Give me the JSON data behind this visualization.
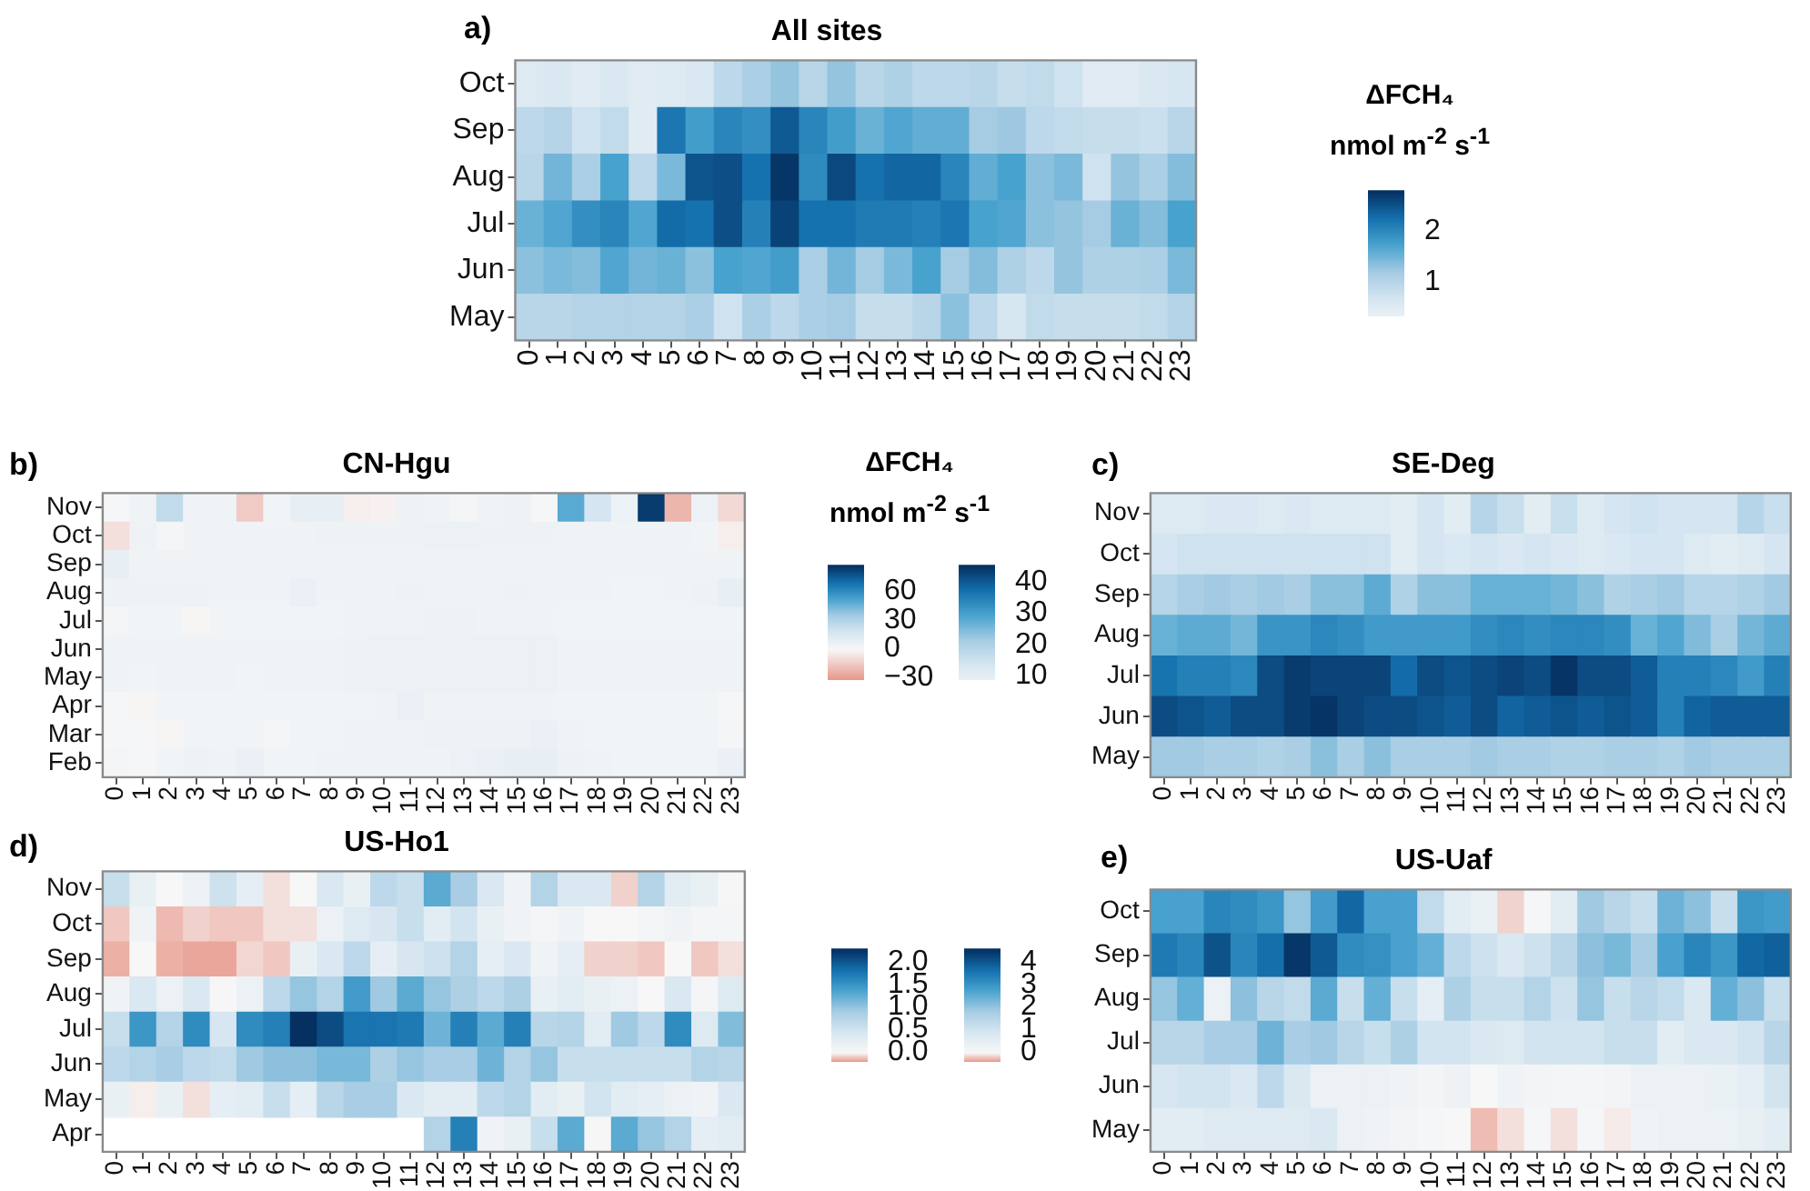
{
  "chart_data": [
    {
      "type": "heatmap",
      "title": "All sites",
      "annotations": [
        "a)"
      ],
      "clabel": "ΔFCH₄ nmol m$^{-2}$ s$^{-1}$",
      "categories": [
        "0",
        "1",
        "2",
        "3",
        "4",
        "5",
        "6",
        "7",
        "8",
        "9",
        "10",
        "11",
        "12",
        "13",
        "14",
        "15",
        "16",
        "17",
        "18",
        "19",
        "20",
        "21",
        "22",
        "23"
      ],
      "y_categories": [
        "Oct",
        "Sep",
        "Aug",
        "Jul",
        "Jun",
        "May"
      ],
      "cells": [
        [
          0.55,
          0.6,
          0.5,
          0.6,
          0.5,
          0.55,
          0.6,
          0.95,
          1.15,
          1.3,
          1.0,
          1.3,
          1.0,
          1.1,
          0.95,
          0.95,
          1.0,
          0.85,
          0.9,
          0.75,
          0.5,
          0.5,
          0.6,
          0.65
        ],
        [
          0.95,
          1.05,
          0.75,
          0.9,
          0.5,
          2.2,
          1.8,
          2.05,
          1.95,
          2.45,
          2.05,
          1.8,
          1.55,
          1.7,
          1.6,
          1.6,
          1.2,
          1.25,
          0.95,
          0.9,
          0.85,
          0.85,
          0.8,
          1.0
        ],
        [
          1.0,
          1.5,
          1.15,
          1.75,
          0.95,
          1.45,
          2.5,
          2.55,
          2.25,
          2.75,
          2.0,
          2.6,
          2.25,
          2.35,
          2.35,
          2.05,
          1.6,
          1.75,
          1.35,
          1.45,
          0.75,
          1.3,
          1.15,
          1.4
        ],
        [
          1.55,
          1.7,
          1.95,
          2.05,
          1.7,
          2.3,
          2.25,
          2.55,
          2.1,
          2.65,
          2.25,
          2.25,
          2.15,
          2.15,
          2.1,
          2.2,
          1.75,
          1.7,
          1.35,
          1.3,
          1.2,
          1.55,
          1.4,
          1.75
        ],
        [
          1.35,
          1.45,
          1.4,
          1.7,
          1.5,
          1.55,
          1.35,
          1.75,
          1.7,
          1.8,
          1.15,
          1.5,
          1.2,
          1.45,
          1.75,
          1.2,
          1.4,
          1.1,
          0.95,
          1.3,
          1.1,
          1.1,
          1.15,
          1.45
        ],
        [
          1.0,
          1.0,
          1.05,
          1.05,
          1.05,
          1.05,
          1.15,
          0.75,
          1.15,
          0.95,
          1.15,
          1.2,
          0.85,
          0.85,
          1.0,
          1.35,
          0.95,
          0.65,
          0.9,
          0.85,
          0.85,
          0.85,
          0.9,
          1.05
        ]
      ],
      "clim": [
        0.35,
        2.8
      ],
      "cticks": [
        1,
        2
      ]
    },
    {
      "type": "heatmap",
      "title": "CN-Hgu",
      "annotations": [
        "b)"
      ],
      "clabel": "ΔFCH₄ nmol m$^{-2}$ s$^{-1}$",
      "categories": [
        "0",
        "1",
        "2",
        "3",
        "4",
        "5",
        "6",
        "7",
        "8",
        "9",
        "10",
        "11",
        "12",
        "13",
        "14",
        "15",
        "16",
        "17",
        "18",
        "19",
        "20",
        "21",
        "22",
        "23"
      ],
      "y_categories": [
        "Nov",
        "Oct",
        "Sep",
        "Aug",
        "Jul",
        "Jun",
        "May",
        "Apr",
        "Mar",
        "Feb"
      ],
      "cells": [
        [
          1,
          4,
          25,
          4,
          4,
          -15,
          3,
          8,
          8,
          -3,
          -2,
          6,
          4,
          2,
          4,
          5,
          1,
          50,
          18,
          6,
          85,
          -22,
          6,
          -10
        ],
        [
          -8,
          5,
          2,
          4,
          4,
          4,
          4,
          4,
          5,
          5,
          5,
          5,
          6,
          6,
          5,
          5,
          5,
          4,
          4,
          4,
          4,
          4,
          3,
          -3
        ],
        [
          8,
          4,
          4,
          4,
          4,
          4,
          4,
          4,
          4,
          4,
          4,
          4,
          4,
          4,
          4,
          4,
          4,
          4,
          4,
          4,
          4,
          4,
          4,
          4
        ],
        [
          5,
          5,
          5,
          5,
          4,
          4,
          4,
          7,
          4,
          4,
          4,
          5,
          4,
          4,
          4,
          5,
          4,
          4,
          4,
          3,
          3,
          4,
          5,
          8
        ],
        [
          2,
          3,
          3,
          -1,
          3,
          3,
          3,
          3,
          3,
          4,
          4,
          4,
          5,
          5,
          4,
          4,
          4,
          3,
          3,
          3,
          3,
          3,
          3,
          3
        ],
        [
          4,
          4,
          4,
          4,
          4,
          4,
          4,
          4,
          4,
          5,
          6,
          6,
          6,
          6,
          6,
          6,
          6,
          4,
          4,
          4,
          4,
          4,
          4,
          4
        ],
        [
          4,
          3,
          4,
          4,
          4,
          3,
          4,
          4,
          4,
          5,
          6,
          6,
          6,
          6,
          6,
          6,
          6,
          4,
          4,
          4,
          4,
          4,
          4,
          4
        ],
        [
          1,
          -1,
          3,
          3,
          3,
          3,
          3,
          3,
          3,
          3,
          4,
          7,
          4,
          4,
          4,
          4,
          4,
          3,
          3,
          3,
          3,
          3,
          3,
          1
        ],
        [
          1,
          1,
          -1,
          3,
          3,
          3,
          2,
          3,
          3,
          4,
          4,
          4,
          5,
          5,
          5,
          5,
          7,
          4,
          3,
          3,
          3,
          3,
          3,
          2
        ],
        [
          2,
          1,
          3,
          5,
          4,
          7,
          3,
          3,
          4,
          4,
          4,
          4,
          4,
          6,
          7,
          8,
          8,
          5,
          4,
          3,
          3,
          3,
          3,
          7
        ]
      ],
      "clim": [
        -32,
        88
      ],
      "cticks": [
        {
          "value": -30,
          "label": "−30"
        },
        0,
        30,
        60
      ]
    },
    {
      "type": "heatmap",
      "title": "SE-Deg",
      "annotations": [
        "c)"
      ],
      "categories": [
        "0",
        "1",
        "2",
        "3",
        "4",
        "5",
        "6",
        "7",
        "8",
        "9",
        "10",
        "11",
        "12",
        "13",
        "14",
        "15",
        "16",
        "17",
        "18",
        "19",
        "20",
        "21",
        "22",
        "23"
      ],
      "y_categories": [
        "Nov",
        "Oct",
        "Sep",
        "Aug",
        "Jul",
        "Jun",
        "May"
      ],
      "cells": [
        [
          12,
          12,
          13,
          13,
          12,
          13,
          12,
          12,
          12,
          11,
          14,
          11,
          19,
          16,
          11,
          16,
          12,
          14,
          15,
          14,
          14,
          14,
          19,
          16
        ],
        [
          14,
          15,
          15,
          15,
          15,
          15,
          15,
          15,
          15,
          11,
          14,
          13,
          14,
          13,
          14,
          13,
          12,
          13,
          14,
          14,
          12,
          11,
          12,
          14
        ],
        [
          19,
          21,
          22,
          21,
          22,
          21,
          24,
          24,
          28,
          20,
          24,
          24,
          27,
          27,
          27,
          26,
          24,
          20,
          21,
          22,
          19,
          19,
          20,
          22
        ],
        [
          27,
          28,
          28,
          26,
          32,
          32,
          34,
          33,
          31,
          31,
          31,
          31,
          33,
          34,
          33,
          34,
          34,
          33,
          27,
          29,
          25,
          21,
          26,
          28
        ],
        [
          37,
          35,
          35,
          34,
          42,
          44,
          43,
          43,
          43,
          38,
          42,
          41,
          42,
          43,
          42,
          45,
          42,
          42,
          40,
          35,
          35,
          34,
          31,
          35
        ],
        [
          42,
          41,
          40,
          42,
          42,
          44,
          45,
          43,
          42,
          42,
          41,
          40,
          42,
          39,
          40,
          41,
          40,
          41,
          40,
          35,
          39,
          40,
          40,
          40
        ],
        [
          22,
          22,
          21,
          21,
          20,
          21,
          24,
          21,
          24,
          21,
          21,
          21,
          22,
          21,
          21,
          20,
          20,
          21,
          21,
          20,
          22,
          21,
          21,
          21
        ]
      ],
      "clim": [
        9,
        45.5
      ],
      "cticks": [
        10,
        20,
        30,
        40
      ]
    },
    {
      "type": "heatmap",
      "title": "US-Ho1",
      "annotations": [
        "d)"
      ],
      "categories": [
        "0",
        "1",
        "2",
        "3",
        "4",
        "5",
        "6",
        "7",
        "8",
        "9",
        "10",
        "11",
        "12",
        "13",
        "14",
        "15",
        "16",
        "17",
        "18",
        "19",
        "20",
        "21",
        "22",
        "23"
      ],
      "y_categories": [
        "Nov",
        "Oct",
        "Sep",
        "Aug",
        "Jul",
        "Jun",
        "May",
        "Apr"
      ],
      "cells": [
        [
          0.6,
          0.2,
          0.0,
          0.15,
          0.55,
          0.25,
          -0.05,
          0.0,
          0.4,
          0.2,
          0.7,
          0.6,
          1.3,
          0.9,
          0.4,
          0.1,
          0.8,
          0.4,
          0.4,
          -0.08,
          0.8,
          0.3,
          0.2,
          0.02
        ],
        [
          -0.1,
          0.1,
          -0.13,
          -0.08,
          -0.1,
          -0.1,
          -0.05,
          -0.05,
          0.15,
          0.35,
          0.45,
          0.6,
          0.3,
          0.5,
          0.2,
          0.1,
          0.05,
          0.1,
          0.0,
          0.0,
          0.05,
          0.1,
          0.05,
          0.05
        ],
        [
          -0.15,
          0.0,
          -0.15,
          -0.17,
          -0.17,
          -0.07,
          -0.1,
          0.2,
          0.4,
          0.7,
          0.25,
          0.45,
          0.55,
          0.8,
          0.25,
          0.4,
          0.1,
          0.25,
          -0.08,
          -0.08,
          -0.1,
          0.0,
          -0.1,
          -0.05
        ],
        [
          0.1,
          0.4,
          0.15,
          0.4,
          0.02,
          0.15,
          0.7,
          1.0,
          0.8,
          1.45,
          0.95,
          1.3,
          1.0,
          0.85,
          0.7,
          0.85,
          0.2,
          0.3,
          0.2,
          0.15,
          0.0,
          0.4,
          0.05,
          0.35
        ],
        [
          0.6,
          1.5,
          0.8,
          1.6,
          0.45,
          1.6,
          1.7,
          2.3,
          2.1,
          1.8,
          1.8,
          1.75,
          1.2,
          1.7,
          1.3,
          1.7,
          0.75,
          0.8,
          0.3,
          0.95,
          0.7,
          1.6,
          0.35,
          1.1
        ],
        [
          0.7,
          0.8,
          0.9,
          0.7,
          0.65,
          0.95,
          1.05,
          1.05,
          1.15,
          1.15,
          0.85,
          1.0,
          0.9,
          0.9,
          1.2,
          0.8,
          1.0,
          0.6,
          0.6,
          0.6,
          0.6,
          0.6,
          0.8,
          0.75
        ],
        [
          0.2,
          -0.02,
          0.2,
          -0.05,
          0.25,
          0.3,
          0.6,
          0.25,
          0.75,
          0.9,
          0.9,
          0.4,
          0.3,
          0.3,
          0.7,
          0.8,
          0.3,
          0.2,
          0.5,
          0.3,
          0.25,
          0.15,
          0.1,
          0.4
        ],
        [
          null,
          null,
          null,
          null,
          null,
          null,
          null,
          null,
          null,
          null,
          null,
          null,
          0.8,
          1.7,
          0.1,
          0.2,
          0.6,
          1.3,
          0.02,
          1.3,
          1.0,
          0.8,
          0.25,
          0.3
        ]
      ],
      "clim": [
        -0.2,
        2.3
      ],
      "cticks": [
        {
          "value": 0,
          "label": "0.0"
        },
        0.5,
        {
          "value": 1,
          "label": "1.0"
        },
        1.5,
        {
          "value": 2,
          "label": "2.0"
        }
      ]
    },
    {
      "type": "heatmap",
      "title": "US-Uaf",
      "annotations": [
        "e)"
      ],
      "categories": [
        "0",
        "1",
        "2",
        "3",
        "4",
        "5",
        "6",
        "7",
        "8",
        "9",
        "10",
        "11",
        "12",
        "13",
        "14",
        "15",
        "16",
        "17",
        "18",
        "19",
        "20",
        "21",
        "22",
        "23"
      ],
      "y_categories": [
        "Oct",
        "Sep",
        "Aug",
        "Jul",
        "Jun",
        "May"
      ],
      "cells": [
        [
          2.8,
          2.8,
          3.3,
          3.2,
          3.0,
          2.0,
          2.9,
          3.8,
          2.8,
          2.8,
          1.3,
          0.6,
          0.35,
          -0.15,
          0.05,
          0.6,
          1.9,
          1.5,
          1.2,
          2.4,
          2.1,
          1.2,
          3.0,
          2.9
        ],
        [
          3.5,
          3.3,
          4.1,
          3.3,
          3.7,
          4.5,
          4.0,
          3.2,
          3.1,
          2.8,
          2.5,
          1.4,
          1.1,
          0.8,
          1.1,
          1.5,
          2.1,
          2.3,
          1.8,
          2.8,
          3.3,
          3.0,
          3.8,
          3.9
        ],
        [
          2.0,
          2.5,
          0.3,
          2.1,
          1.5,
          1.3,
          2.6,
          1.2,
          2.5,
          1.2,
          0.5,
          1.7,
          1.2,
          1.2,
          1.6,
          1.1,
          2.0,
          1.2,
          1.5,
          1.3,
          0.8,
          2.5,
          2.1,
          1.2
        ],
        [
          1.5,
          1.5,
          1.8,
          1.8,
          2.4,
          1.8,
          1.9,
          1.5,
          1.2,
          1.7,
          1.0,
          1.0,
          0.8,
          0.7,
          1.0,
          1.0,
          1.0,
          1.2,
          1.2,
          0.6,
          0.8,
          0.8,
          1.0,
          1.5
        ],
        [
          0.9,
          1.0,
          1.0,
          0.8,
          1.4,
          0.8,
          0.3,
          0.3,
          0.3,
          0.2,
          0.15,
          0.25,
          0.0,
          0.2,
          0.15,
          0.1,
          0.1,
          0.15,
          0.3,
          0.3,
          0.3,
          0.35,
          0.5,
          1.0
        ],
        [
          0.6,
          0.6,
          0.7,
          0.7,
          0.7,
          0.7,
          0.8,
          0.3,
          0.2,
          0.15,
          0.05,
          0.0,
          -0.25,
          -0.1,
          0.05,
          -0.1,
          0.05,
          -0.05,
          0.2,
          0.3,
          0.3,
          0.3,
          0.4,
          0.6
        ]
      ],
      "clim": [
        -0.4,
        4.6
      ],
      "cticks": [
        0,
        1,
        2,
        3,
        4
      ]
    }
  ]
}
